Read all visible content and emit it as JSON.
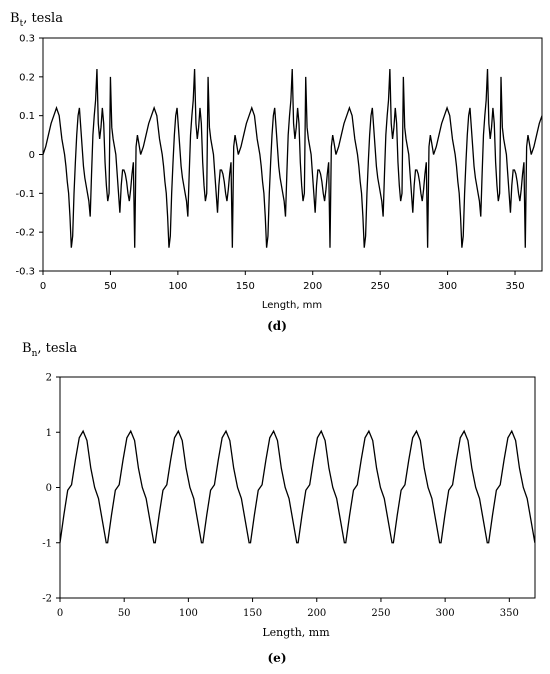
{
  "chart_data": [
    {
      "type": "line",
      "panel_label": "(d)",
      "ylabel_main": "B",
      "ylabel_sub": "t",
      "ylabel_rest": ", tesla",
      "xlabel": "Length, mm",
      "xlim": [
        0,
        370
      ],
      "ylim": [
        -0.3,
        0.3
      ],
      "xticks": [
        "0",
        "50",
        "100",
        "150",
        "200",
        "250",
        "300",
        "350"
      ],
      "yticks": [
        "0.3",
        "0.2",
        "0.1",
        "0",
        "-0.1",
        "-0.2",
        "-0.3"
      ],
      "period_mm": 72.4,
      "series": [
        {
          "x": [
            0,
            2,
            4,
            6,
            8,
            10,
            12,
            13,
            14,
            15,
            16,
            17,
            18,
            19,
            20,
            21,
            22,
            23,
            24,
            25,
            26,
            27,
            28,
            29,
            30,
            31,
            32,
            33,
            34,
            35,
            36,
            37,
            38,
            39,
            40,
            41,
            42,
            43,
            44,
            45,
            46,
            47,
            48,
            49,
            50,
            51,
            52,
            53,
            54,
            55,
            56,
            57,
            58,
            59,
            60,
            61,
            62,
            63,
            64,
            65,
            66,
            67,
            68,
            69,
            70,
            71,
            72.4
          ],
          "values": [
            0.0,
            0.02,
            0.05,
            0.08,
            0.1,
            0.12,
            0.1,
            0.07,
            0.04,
            0.02,
            0.0,
            -0.03,
            -0.07,
            -0.1,
            -0.16,
            -0.24,
            -0.21,
            -0.1,
            -0.02,
            0.05,
            0.1,
            0.12,
            0.07,
            0.02,
            -0.03,
            -0.06,
            -0.08,
            -0.1,
            -0.12,
            -0.16,
            -0.05,
            0.05,
            0.1,
            0.14,
            0.22,
            0.08,
            0.04,
            0.07,
            0.12,
            0.08,
            -0.02,
            -0.08,
            -0.12,
            -0.1,
            0.2,
            0.07,
            0.04,
            0.02,
            0.0,
            -0.05,
            -0.1,
            -0.15,
            -0.08,
            -0.04,
            -0.04,
            -0.05,
            -0.07,
            -0.1,
            -0.12,
            -0.09,
            -0.05,
            -0.02,
            -0.24,
            0.02,
            0.05,
            0.03,
            0.0
          ]
        }
      ]
    },
    {
      "type": "line",
      "panel_label": "(e)",
      "ylabel_main": "B",
      "ylabel_sub": "n",
      "ylabel_rest": ", tesla",
      "xlabel": "Length, mm",
      "xlim": [
        0,
        370
      ],
      "ylim": [
        -2,
        2
      ],
      "xticks": [
        "0",
        "50",
        "100",
        "150",
        "200",
        "250",
        "300",
        "350"
      ],
      "yticks": [
        "2",
        "1",
        "0",
        "-1",
        "-2"
      ],
      "period_mm": 37.1,
      "series": [
        {
          "x": [
            0,
            3,
            6,
            9,
            12,
            15,
            18,
            21,
            24,
            27,
            30,
            33,
            36,
            37.1
          ],
          "values": [
            -1.0,
            -0.5,
            -0.05,
            0.05,
            0.5,
            0.9,
            1.02,
            0.85,
            0.35,
            0.0,
            -0.2,
            -0.6,
            -1.0,
            -1.0
          ]
        }
      ]
    }
  ]
}
